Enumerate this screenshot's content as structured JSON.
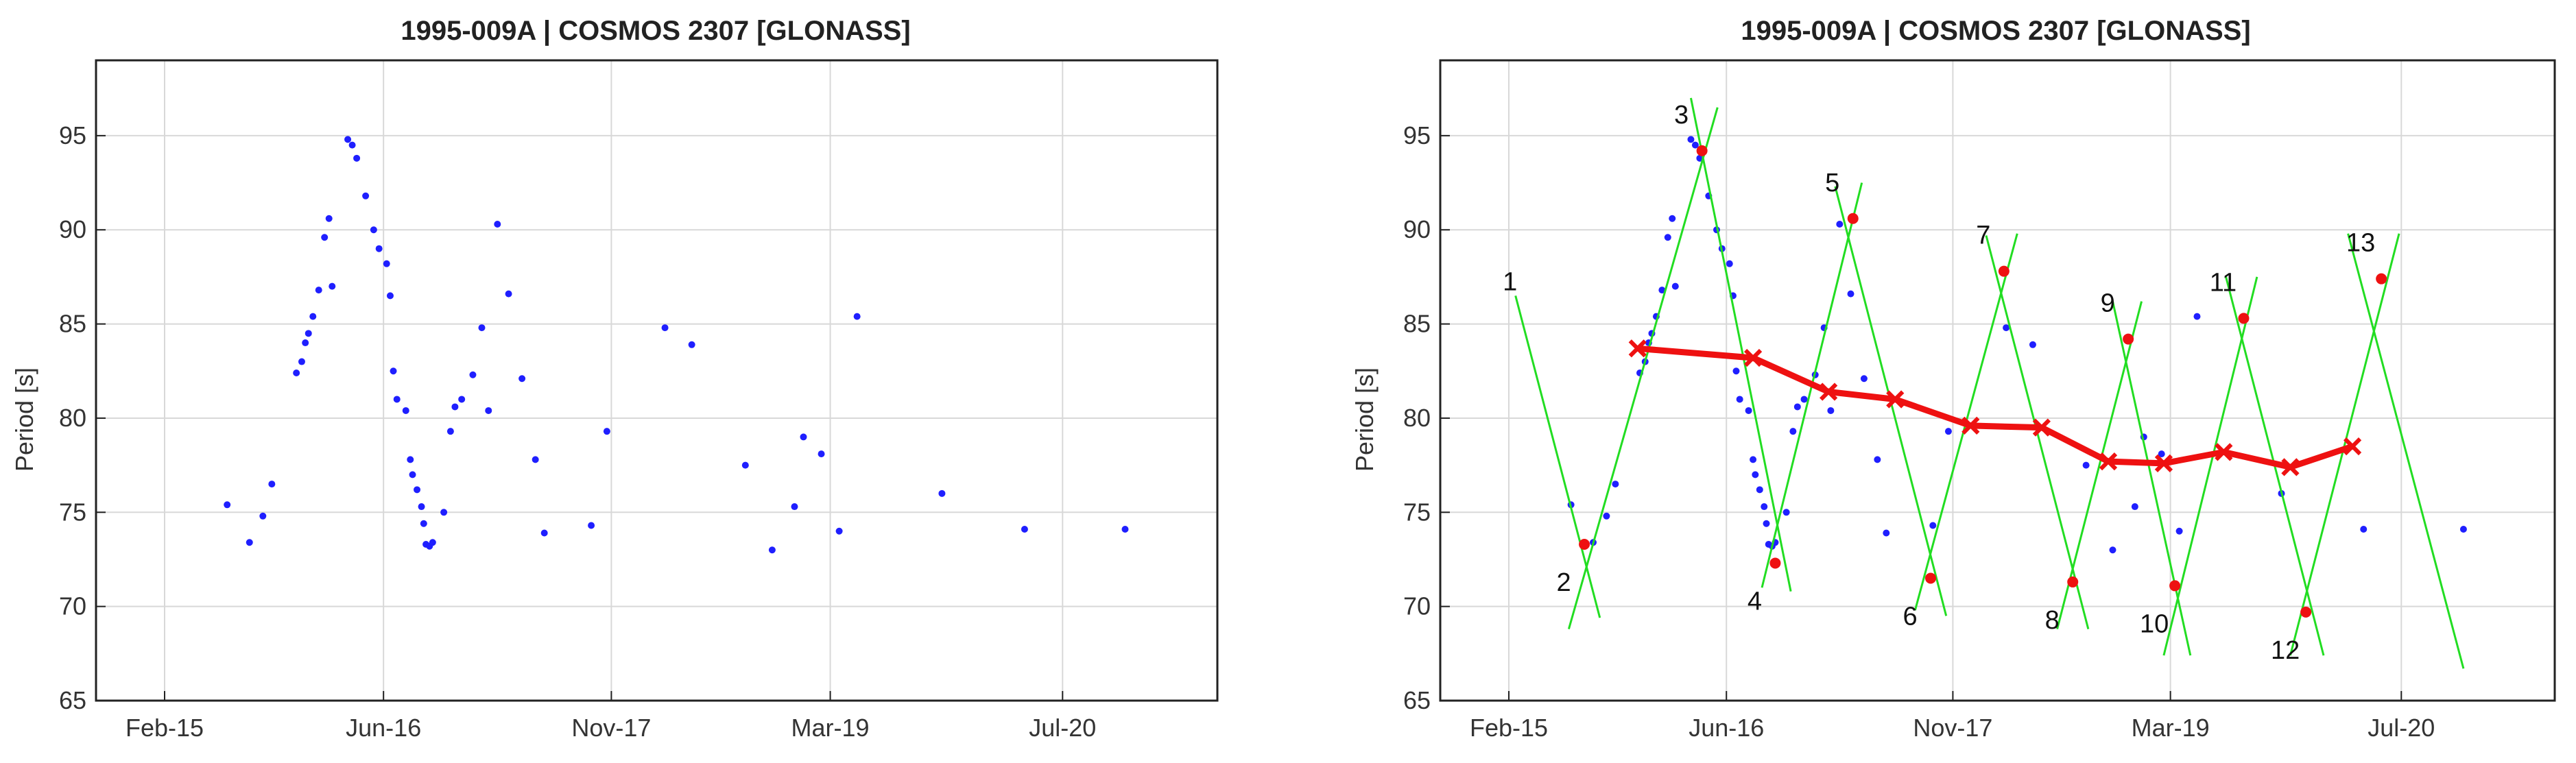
{
  "chart_data": [
    {
      "type": "scatter",
      "title": "1995-009A | COSMOS 2307 [GLONASS]",
      "xlabel": "",
      "ylabel": "Period [s]",
      "xtick_labels": [
        "Feb-15",
        "Jun-16",
        "Nov-17",
        "Mar-19",
        "Jul-20"
      ],
      "ytick_labels": [
        "65",
        "70",
        "75",
        "80",
        "85",
        "90",
        "95"
      ],
      "xlim": [
        0,
        2510
      ],
      "ylim": [
        65,
        99
      ],
      "grid": true,
      "point_color": "#1f1fff",
      "series": [
        {
          "x": [
            140,
            190,
            220,
            240,
            295,
            307,
            315,
            322,
            332,
            345,
            358,
            368,
            375,
            410,
            420,
            430,
            450,
            468,
            480,
            497,
            505,
            512,
            520,
            540,
            550,
            555,
            565,
            575,
            580,
            585,
            593,
            600,
            625,
            640,
            650,
            665,
            690,
            710,
            725,
            745,
            770,
            800,
            830,
            850,
            955,
            990,
            1120,
            1180,
            1300,
            1360,
            1410,
            1430,
            1470,
            1510,
            1550,
            1740,
            1925,
            2150
          ],
          "y": [
            75.4,
            73.4,
            74.8,
            76.5,
            82.4,
            83.0,
            84.0,
            84.5,
            85.4,
            86.8,
            89.6,
            90.6,
            87.0,
            94.8,
            94.5,
            93.8,
            91.8,
            90.0,
            89.0,
            88.2,
            86.5,
            82.5,
            81.0,
            80.4,
            77.8,
            77.0,
            76.2,
            75.3,
            74.4,
            73.3,
            73.2,
            73.4,
            75.0,
            79.3,
            80.6,
            81.0,
            82.3,
            84.8,
            80.4,
            90.3,
            86.6,
            82.1,
            77.8,
            73.9,
            74.3,
            79.3,
            84.8,
            83.9,
            77.5,
            73.0,
            75.3,
            79.0,
            78.1,
            74.0,
            85.4,
            76.0,
            74.1,
            74.1
          ]
        }
      ]
    },
    {
      "type": "line",
      "title": "1995-009A | COSMOS 2307 [GLONASS]",
      "xlabel": "",
      "ylabel": "Period [s]",
      "xtick_labels": [
        "Feb-15",
        "Jun-16",
        "Nov-17",
        "Mar-19",
        "Jul-20"
      ],
      "ytick_labels": [
        "65",
        "70",
        "75",
        "80",
        "85",
        "90",
        "95"
      ],
      "xlim": [
        0,
        2510
      ],
      "ylim": [
        65,
        99
      ],
      "grid": true,
      "colors": {
        "points": "#1f1fff",
        "zigzag": "#22dd22",
        "trend": "#ee1111",
        "extrema": "#ee1111"
      },
      "points": {
        "x": [
          140,
          190,
          220,
          240,
          295,
          307,
          315,
          322,
          332,
          345,
          358,
          368,
          375,
          410,
          420,
          430,
          450,
          468,
          480,
          497,
          505,
          512,
          520,
          540,
          550,
          555,
          565,
          575,
          580,
          585,
          593,
          600,
          625,
          640,
          650,
          665,
          690,
          710,
          725,
          745,
          770,
          800,
          830,
          850,
          955,
          990,
          1120,
          1180,
          1300,
          1360,
          1410,
          1430,
          1470,
          1510,
          1550,
          1740,
          1925,
          2150
        ],
        "y": [
          75.4,
          73.4,
          74.8,
          76.5,
          82.4,
          83.0,
          84.0,
          84.5,
          85.4,
          86.8,
          89.6,
          90.6,
          87.0,
          94.8,
          94.5,
          93.8,
          91.8,
          90.0,
          89.0,
          88.2,
          86.5,
          82.5,
          81.0,
          80.4,
          77.8,
          77.0,
          76.2,
          75.3,
          74.4,
          73.3,
          73.2,
          73.4,
          75.0,
          79.3,
          80.6,
          81.0,
          82.3,
          84.8,
          80.4,
          90.3,
          86.6,
          82.1,
          77.8,
          73.9,
          74.3,
          79.3,
          84.8,
          83.9,
          77.5,
          73.0,
          75.3,
          79.0,
          78.1,
          74.0,
          85.4,
          76.0,
          74.1,
          74.1
        ]
      },
      "extrema": [
        {
          "label": "2",
          "x": 170,
          "y": 73.3
        },
        {
          "label": "3",
          "x": 435,
          "y": 94.2
        },
        {
          "label": "4",
          "x": 600,
          "y": 72.3
        },
        {
          "label": "5",
          "x": 775,
          "y": 90.6
        },
        {
          "label": "6",
          "x": 950,
          "y": 71.5
        },
        {
          "label": "7",
          "x": 1115,
          "y": 87.8
        },
        {
          "label": "8",
          "x": 1270,
          "y": 71.3
        },
        {
          "label": "9",
          "x": 1395,
          "y": 84.2
        },
        {
          "label": "10",
          "x": 1500,
          "y": 71.1
        },
        {
          "label": "11",
          "x": 1655,
          "y": 85.3
        },
        {
          "label": "12",
          "x": 1795,
          "y": 69.7
        },
        {
          "label": "13",
          "x": 1965,
          "y": 87.4
        }
      ],
      "start_label": {
        "label": "1",
        "x": 15,
        "y": 86.5
      },
      "zigzag_lines": [
        {
          "x": [
            15,
            205
          ],
          "y": [
            86.5,
            69.4
          ]
        },
        {
          "x": [
            135,
            470
          ],
          "y": [
            68.8,
            96.5
          ]
        },
        {
          "x": [
            410,
            635
          ],
          "y": [
            97.0,
            70.8
          ]
        },
        {
          "x": [
            570,
            795
          ],
          "y": [
            71.0,
            92.5
          ]
        },
        {
          "x": [
            735,
            985
          ],
          "y": [
            92.3,
            69.5
          ]
        },
        {
          "x": [
            915,
            1145
          ],
          "y": [
            69.8,
            89.8
          ]
        },
        {
          "x": [
            1075,
            1305
          ],
          "y": [
            89.7,
            68.8
          ]
        },
        {
          "x": [
            1235,
            1425
          ],
          "y": [
            68.8,
            86.2
          ]
        },
        {
          "x": [
            1360,
            1535
          ],
          "y": [
            86.2,
            67.4
          ]
        },
        {
          "x": [
            1475,
            1685
          ],
          "y": [
            67.4,
            87.5
          ]
        },
        {
          "x": [
            1615,
            1835
          ],
          "y": [
            87.5,
            67.4
          ]
        },
        {
          "x": [
            1760,
            2005
          ],
          "y": [
            67.4,
            89.8
          ]
        },
        {
          "x": [
            1890,
            2150
          ],
          "y": [
            89.8,
            66.7
          ]
        }
      ],
      "trend": {
        "x": [
          290,
          550,
          720,
          870,
          1040,
          1200,
          1350,
          1475,
          1610,
          1760,
          1900
        ],
        "y": [
          83.7,
          83.2,
          81.4,
          81.0,
          79.6,
          79.5,
          77.7,
          77.6,
          78.2,
          77.4,
          78.5
        ]
      }
    }
  ]
}
